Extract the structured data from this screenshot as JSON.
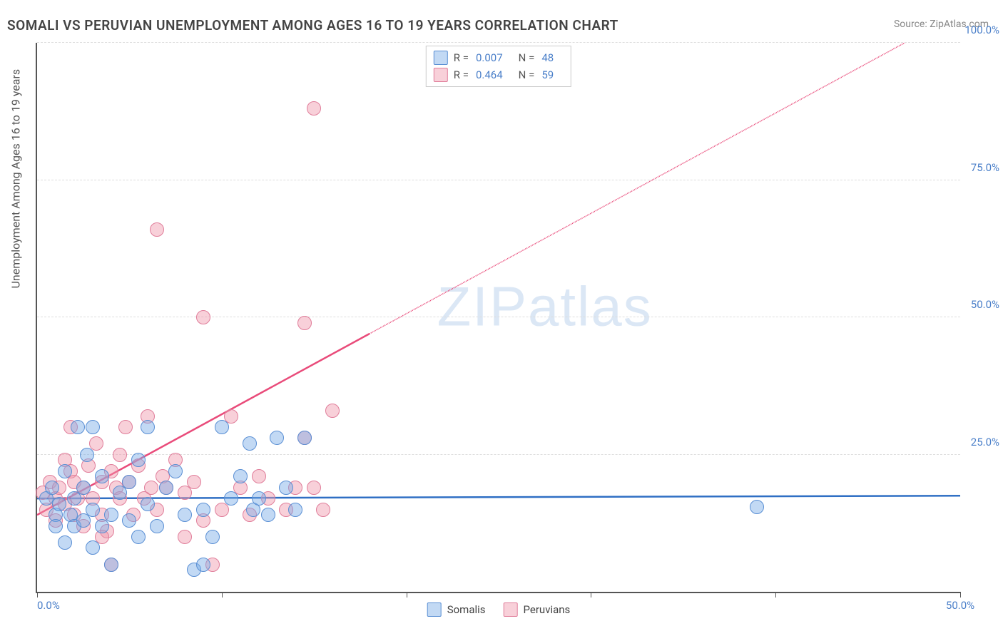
{
  "title": "SOMALI VS PERUVIAN UNEMPLOYMENT AMONG AGES 16 TO 19 YEARS CORRELATION CHART",
  "source": "Source: ZipAtlas.com",
  "y_axis_label": "Unemployment Among Ages 16 to 19 years",
  "watermark": "ZIPatlas",
  "colors": {
    "somali_fill": "rgba(120,170,230,0.45)",
    "somali_stroke": "#5a8fd4",
    "peruvian_fill": "rgba(240,150,170,0.45)",
    "peruvian_stroke": "#e07d9a",
    "somali_line": "#2f6fc4",
    "peruvian_line": "#e94b7a",
    "axis_text": "#4a7fc9",
    "grid": "#dddddd",
    "title_color": "#444444",
    "source_color": "#888888"
  },
  "axes": {
    "xlim": [
      0,
      50
    ],
    "ylim": [
      0,
      100
    ],
    "x_ticks": [
      0,
      10,
      20,
      30,
      40,
      50
    ],
    "y_ticks": [
      25,
      50,
      75,
      100
    ],
    "x_labels": {
      "min": "0.0%",
      "max": "50.0%"
    },
    "y_labels": [
      "25.0%",
      "50.0%",
      "75.0%",
      "100.0%"
    ]
  },
  "stats": [
    {
      "series": "somali",
      "R_label": "R =",
      "R": "0.007",
      "N_label": "N =",
      "N": "48"
    },
    {
      "series": "peruvian",
      "R_label": "R =",
      "R": "0.464",
      "N_label": "N =",
      "N": "59"
    }
  ],
  "legend_bottom": [
    {
      "label": "Somalis",
      "series": "somali"
    },
    {
      "label": "Peruvians",
      "series": "peruvian"
    }
  ],
  "trend_lines": {
    "somali": {
      "x1": 0,
      "y1": 17,
      "x2": 50,
      "y2": 17.5,
      "dashed": false
    },
    "peruvian_solid": {
      "x1": 0,
      "y1": 14,
      "x2": 18,
      "y2": 47,
      "dashed": false
    },
    "peruvian_dashed": {
      "x1": 18,
      "y1": 47,
      "x2": 47,
      "y2": 100,
      "dashed": true
    }
  },
  "points": {
    "somali": [
      [
        0.5,
        17
      ],
      [
        0.8,
        19
      ],
      [
        1,
        14
      ],
      [
        1,
        12
      ],
      [
        1.2,
        16
      ],
      [
        1.5,
        9
      ],
      [
        1.5,
        22
      ],
      [
        1.8,
        14
      ],
      [
        2,
        17
      ],
      [
        2,
        12
      ],
      [
        2.2,
        30
      ],
      [
        2.5,
        13
      ],
      [
        2.5,
        19
      ],
      [
        3,
        8
      ],
      [
        3,
        15
      ],
      [
        3,
        30
      ],
      [
        3.5,
        21
      ],
      [
        3.5,
        12
      ],
      [
        4,
        14
      ],
      [
        4,
        5
      ],
      [
        4.5,
        18
      ],
      [
        5,
        13
      ],
      [
        5,
        20
      ],
      [
        5.5,
        10
      ],
      [
        5.5,
        24
      ],
      [
        6,
        16
      ],
      [
        6,
        30
      ],
      [
        6.5,
        12
      ],
      [
        7,
        19
      ],
      [
        7.5,
        22
      ],
      [
        8,
        14
      ],
      [
        8.5,
        4
      ],
      [
        9,
        15
      ],
      [
        9,
        5
      ],
      [
        9.5,
        10
      ],
      [
        10,
        30
      ],
      [
        10.5,
        17
      ],
      [
        11,
        21
      ],
      [
        11.5,
        27
      ],
      [
        11.7,
        15
      ],
      [
        12,
        17
      ],
      [
        12.5,
        14
      ],
      [
        13,
        28
      ],
      [
        13.5,
        19
      ],
      [
        14,
        15
      ],
      [
        14.5,
        28
      ],
      [
        39,
        15.5
      ],
      [
        2.7,
        25
      ]
    ],
    "peruvian": [
      [
        0.3,
        18
      ],
      [
        0.5,
        15
      ],
      [
        0.7,
        20
      ],
      [
        1,
        17
      ],
      [
        1,
        13
      ],
      [
        1.2,
        19
      ],
      [
        1.5,
        24
      ],
      [
        1.5,
        16
      ],
      [
        1.8,
        22
      ],
      [
        2,
        14
      ],
      [
        2,
        20
      ],
      [
        2.2,
        17
      ],
      [
        2.5,
        19
      ],
      [
        2.5,
        12
      ],
      [
        2.8,
        23
      ],
      [
        3,
        17
      ],
      [
        3.2,
        27
      ],
      [
        3.5,
        20
      ],
      [
        3.5,
        14
      ],
      [
        3.8,
        11
      ],
      [
        4,
        22
      ],
      [
        4.3,
        19
      ],
      [
        4.5,
        25
      ],
      [
        4.5,
        17
      ],
      [
        4.8,
        30
      ],
      [
        5,
        20
      ],
      [
        5.2,
        14
      ],
      [
        5.5,
        23
      ],
      [
        5.8,
        17
      ],
      [
        6,
        32
      ],
      [
        6.2,
        19
      ],
      [
        6.5,
        15
      ],
      [
        6.8,
        21
      ],
      [
        7,
        19
      ],
      [
        7.5,
        24
      ],
      [
        8,
        18
      ],
      [
        8.5,
        20
      ],
      [
        9,
        13
      ],
      [
        9.5,
        5
      ],
      [
        10,
        15
      ],
      [
        10.5,
        32
      ],
      [
        11,
        19
      ],
      [
        11.5,
        14
      ],
      [
        12,
        21
      ],
      [
        12.5,
        17
      ],
      [
        13.5,
        15
      ],
      [
        14,
        19
      ],
      [
        14.5,
        28
      ],
      [
        15,
        19
      ],
      [
        15.5,
        15
      ],
      [
        16,
        33
      ],
      [
        9,
        50
      ],
      [
        14.5,
        49
      ],
      [
        6.5,
        66
      ],
      [
        15,
        88
      ],
      [
        3.5,
        10
      ],
      [
        4,
        5
      ],
      [
        8,
        10
      ],
      [
        1.8,
        30
      ]
    ]
  }
}
